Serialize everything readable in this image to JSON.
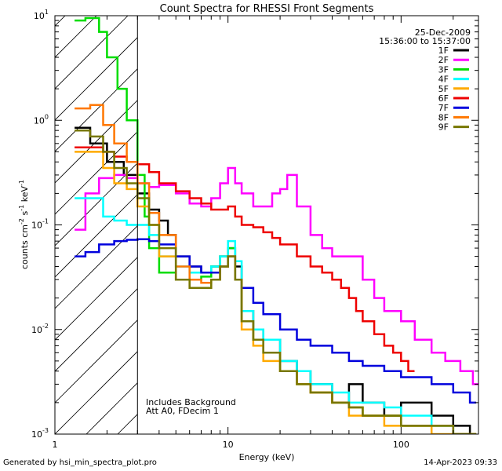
{
  "chart_data": {
    "type": "line",
    "title": "Count Spectra for RHESSI Front Segments",
    "xlabel": "Energy (keV)",
    "ylabel_parts": {
      "main": "counts cm",
      "exp1": "-2",
      "mid": " s",
      "exp2": "-1",
      "end": " keV",
      "exp3": "-1"
    },
    "xscale": "log",
    "yscale": "log",
    "xlim": [
      1,
      280
    ],
    "ylim": [
      0.001,
      10
    ],
    "x_ticks": [
      {
        "value": 1,
        "label": "1"
      },
      {
        "value": 10,
        "label": "10"
      },
      {
        "value": 100,
        "label": "100"
      }
    ],
    "y_ticks": [
      {
        "value": 10,
        "label": "10",
        "exp": "1"
      },
      {
        "value": 1,
        "label": "10",
        "exp": "0"
      },
      {
        "value": 0.1,
        "label": "10",
        "exp": "-1"
      },
      {
        "value": 0.01,
        "label": "10",
        "exp": "-2"
      },
      {
        "value": 0.001,
        "label": "10",
        "exp": "-3"
      }
    ],
    "legend_header": {
      "date": "25-Dec-2009",
      "time_range": "15:36:00 to 15:37:00"
    },
    "legend_placement": "top-right",
    "excluded_region_kev": [
      1,
      3
    ],
    "annotations": [
      "Includes Background",
      "Att A0, FDecim 1"
    ],
    "series": [
      {
        "name": "1F",
        "color": "#000000",
        "values": [
          [
            1.3,
            0.85
          ],
          [
            1.6,
            0.6
          ],
          [
            2.0,
            0.4
          ],
          [
            2.5,
            0.3
          ],
          [
            3.0,
            0.2
          ],
          [
            3.5,
            0.14
          ],
          [
            4.0,
            0.11
          ],
          [
            4.5,
            0.08
          ],
          [
            5.0,
            0.05
          ],
          [
            6.0,
            0.04
          ],
          [
            7.0,
            0.035
          ],
          [
            8.0,
            0.04
          ],
          [
            9.0,
            0.05
          ],
          [
            10.0,
            0.06
          ],
          [
            11.0,
            0.04
          ],
          [
            12.0,
            0.015
          ],
          [
            14.0,
            0.01
          ],
          [
            16.0,
            0.008
          ],
          [
            20.0,
            0.005
          ],
          [
            25.0,
            0.004
          ],
          [
            30.0,
            0.003
          ],
          [
            40.0,
            0.002
          ],
          [
            50.0,
            0.003
          ],
          [
            60.0,
            0.002
          ],
          [
            80.0,
            0.0015
          ],
          [
            100.0,
            0.002
          ],
          [
            150.0,
            0.0015
          ],
          [
            200.0,
            0.0012
          ],
          [
            250.0,
            0.001
          ]
        ]
      },
      {
        "name": "2F",
        "color": "#ff00ff",
        "values": [
          [
            1.3,
            0.09
          ],
          [
            1.5,
            0.2
          ],
          [
            1.8,
            0.28
          ],
          [
            2.2,
            0.3
          ],
          [
            2.6,
            0.28
          ],
          [
            3.0,
            0.25
          ],
          [
            3.5,
            0.23
          ],
          [
            4.0,
            0.24
          ],
          [
            5.0,
            0.2
          ],
          [
            6.0,
            0.16
          ],
          [
            7.0,
            0.15
          ],
          [
            8.0,
            0.18
          ],
          [
            9.0,
            0.25
          ],
          [
            10.0,
            0.35
          ],
          [
            11.0,
            0.25
          ],
          [
            12.0,
            0.2
          ],
          [
            14.0,
            0.15
          ],
          [
            16.0,
            0.15
          ],
          [
            18.0,
            0.2
          ],
          [
            20.0,
            0.22
          ],
          [
            22.0,
            0.3
          ],
          [
            25.0,
            0.15
          ],
          [
            30.0,
            0.08
          ],
          [
            35.0,
            0.06
          ],
          [
            40.0,
            0.05
          ],
          [
            50.0,
            0.05
          ],
          [
            60.0,
            0.03
          ],
          [
            70.0,
            0.02
          ],
          [
            80.0,
            0.015
          ],
          [
            100.0,
            0.012
          ],
          [
            120.0,
            0.008
          ],
          [
            150.0,
            0.006
          ],
          [
            180.0,
            0.005
          ],
          [
            220.0,
            0.004
          ],
          [
            260.0,
            0.003
          ]
        ]
      },
      {
        "name": "3F",
        "color": "#00dd00",
        "values": [
          [
            1.3,
            9.0
          ],
          [
            1.5,
            9.5
          ],
          [
            1.8,
            7.0
          ],
          [
            2.0,
            4.0
          ],
          [
            2.3,
            2.0
          ],
          [
            2.6,
            1.0
          ],
          [
            3.0,
            0.3
          ],
          [
            3.3,
            0.12
          ],
          [
            3.5,
            0.06
          ],
          [
            4.0,
            0.035
          ],
          [
            5.0,
            0.03
          ],
          [
            6.0,
            0.03
          ],
          [
            7.0,
            0.032
          ],
          [
            8.0,
            0.04
          ],
          [
            9.0,
            0.05
          ],
          [
            10.0,
            0.06
          ],
          [
            11.0,
            0.03
          ],
          [
            12.0,
            0.012
          ],
          [
            14.0,
            0.008
          ],
          [
            16.0,
            0.006
          ],
          [
            20.0,
            0.004
          ],
          [
            25.0,
            0.003
          ],
          [
            30.0,
            0.0025
          ],
          [
            40.0,
            0.002
          ],
          [
            50.0,
            0.0018
          ],
          [
            60.0,
            0.0015
          ],
          [
            80.0,
            0.0015
          ],
          [
            100.0,
            0.0012
          ],
          [
            150.0,
            0.0012
          ],
          [
            200.0,
            0.001
          ],
          [
            250.0,
            0.001
          ]
        ]
      },
      {
        "name": "4F",
        "color": "#00ffff",
        "values": [
          [
            1.3,
            0.18
          ],
          [
            1.6,
            0.18
          ],
          [
            1.9,
            0.12
          ],
          [
            2.2,
            0.11
          ],
          [
            2.6,
            0.1
          ],
          [
            3.0,
            0.1
          ],
          [
            3.5,
            0.08
          ],
          [
            4.0,
            0.05
          ],
          [
            5.0,
            0.04
          ],
          [
            6.0,
            0.035
          ],
          [
            7.0,
            0.035
          ],
          [
            8.0,
            0.04
          ],
          [
            9.0,
            0.05
          ],
          [
            10.0,
            0.07
          ],
          [
            11.0,
            0.045
          ],
          [
            12.0,
            0.015
          ],
          [
            14.0,
            0.01
          ],
          [
            16.0,
            0.008
          ],
          [
            20.0,
            0.005
          ],
          [
            25.0,
            0.004
          ],
          [
            30.0,
            0.003
          ],
          [
            40.0,
            0.0025
          ],
          [
            50.0,
            0.002
          ],
          [
            60.0,
            0.002
          ],
          [
            80.0,
            0.0018
          ],
          [
            100.0,
            0.0015
          ],
          [
            150.0,
            0.0012
          ],
          [
            200.0,
            0.001
          ],
          [
            250.0,
            0.001
          ]
        ]
      },
      {
        "name": "5F",
        "color": "#ffaa00",
        "values": [
          [
            1.3,
            0.5
          ],
          [
            1.6,
            0.5
          ],
          [
            1.9,
            0.35
          ],
          [
            2.2,
            0.25
          ],
          [
            2.6,
            0.22
          ],
          [
            3.0,
            0.15
          ],
          [
            3.5,
            0.1
          ],
          [
            4.0,
            0.05
          ],
          [
            5.0,
            0.03
          ],
          [
            6.0,
            0.025
          ],
          [
            7.0,
            0.025
          ],
          [
            8.0,
            0.03
          ],
          [
            9.0,
            0.04
          ],
          [
            10.0,
            0.05
          ],
          [
            11.0,
            0.03
          ],
          [
            12.0,
            0.01
          ],
          [
            14.0,
            0.007
          ],
          [
            16.0,
            0.005
          ],
          [
            20.0,
            0.004
          ],
          [
            25.0,
            0.003
          ],
          [
            30.0,
            0.0025
          ],
          [
            40.0,
            0.002
          ],
          [
            50.0,
            0.0015
          ],
          [
            60.0,
            0.0015
          ],
          [
            80.0,
            0.0012
          ],
          [
            100.0,
            0.0012
          ],
          [
            150.0,
            0.001
          ],
          [
            200.0,
            0.001
          ],
          [
            250.0,
            0.001
          ]
        ]
      },
      {
        "name": "6F",
        "color": "#ee0000",
        "values": [
          [
            1.3,
            0.55
          ],
          [
            1.6,
            0.55
          ],
          [
            1.9,
            0.5
          ],
          [
            2.2,
            0.45
          ],
          [
            2.6,
            0.4
          ],
          [
            3.0,
            0.38
          ],
          [
            3.5,
            0.32
          ],
          [
            4.0,
            0.25
          ],
          [
            5.0,
            0.21
          ],
          [
            6.0,
            0.18
          ],
          [
            7.0,
            0.16
          ],
          [
            8.0,
            0.14
          ],
          [
            9.0,
            0.14
          ],
          [
            10.0,
            0.15
          ],
          [
            11.0,
            0.12
          ],
          [
            12.0,
            0.1
          ],
          [
            14.0,
            0.095
          ],
          [
            16.0,
            0.085
          ],
          [
            18.0,
            0.075
          ],
          [
            20.0,
            0.065
          ],
          [
            25.0,
            0.05
          ],
          [
            30.0,
            0.04
          ],
          [
            35.0,
            0.035
          ],
          [
            40.0,
            0.03
          ],
          [
            45.0,
            0.025
          ],
          [
            50.0,
            0.02
          ],
          [
            55.0,
            0.015
          ],
          [
            60.0,
            0.012
          ],
          [
            70.0,
            0.009
          ],
          [
            80.0,
            0.007
          ],
          [
            90.0,
            0.006
          ],
          [
            100.0,
            0.005
          ],
          [
            110.0,
            0.004
          ]
        ]
      },
      {
        "name": "7F",
        "color": "#0000dd",
        "values": [
          [
            1.3,
            0.05
          ],
          [
            1.5,
            0.055
          ],
          [
            1.8,
            0.065
          ],
          [
            2.2,
            0.07
          ],
          [
            2.6,
            0.072
          ],
          [
            3.0,
            0.073
          ],
          [
            3.5,
            0.07
          ],
          [
            4.0,
            0.065
          ],
          [
            5.0,
            0.05
          ],
          [
            6.0,
            0.04
          ],
          [
            7.0,
            0.035
          ],
          [
            8.0,
            0.035
          ],
          [
            9.0,
            0.04
          ],
          [
            10.0,
            0.05
          ],
          [
            11.0,
            0.03
          ],
          [
            12.0,
            0.025
          ],
          [
            14.0,
            0.018
          ],
          [
            16.0,
            0.014
          ],
          [
            20.0,
            0.01
          ],
          [
            25.0,
            0.008
          ],
          [
            30.0,
            0.007
          ],
          [
            40.0,
            0.006
          ],
          [
            50.0,
            0.005
          ],
          [
            60.0,
            0.0045
          ],
          [
            80.0,
            0.004
          ],
          [
            100.0,
            0.0035
          ],
          [
            150.0,
            0.003
          ],
          [
            200.0,
            0.0025
          ],
          [
            250.0,
            0.002
          ]
        ]
      },
      {
        "name": "8F",
        "color": "#ff7700",
        "values": [
          [
            1.3,
            1.3
          ],
          [
            1.6,
            1.4
          ],
          [
            1.9,
            0.9
          ],
          [
            2.2,
            0.6
          ],
          [
            2.6,
            0.4
          ],
          [
            3.0,
            0.25
          ],
          [
            3.5,
            0.13
          ],
          [
            4.0,
            0.08
          ],
          [
            5.0,
            0.04
          ],
          [
            6.0,
            0.03
          ],
          [
            7.0,
            0.028
          ],
          [
            8.0,
            0.03
          ],
          [
            9.0,
            0.04
          ],
          [
            10.0,
            0.05
          ],
          [
            11.0,
            0.03
          ],
          [
            12.0,
            0.012
          ],
          [
            14.0,
            0.008
          ],
          [
            16.0,
            0.006
          ],
          [
            20.0,
            0.004
          ],
          [
            25.0,
            0.003
          ],
          [
            30.0,
            0.0025
          ],
          [
            40.0,
            0.002
          ],
          [
            50.0,
            0.0018
          ],
          [
            60.0,
            0.0015
          ],
          [
            80.0,
            0.0015
          ],
          [
            100.0,
            0.0012
          ],
          [
            150.0,
            0.0012
          ],
          [
            200.0,
            0.001
          ],
          [
            250.0,
            0.001
          ]
        ]
      },
      {
        "name": "9F",
        "color": "#777700",
        "values": [
          [
            1.3,
            0.8
          ],
          [
            1.6,
            0.7
          ],
          [
            1.9,
            0.5
          ],
          [
            2.2,
            0.35
          ],
          [
            2.6,
            0.25
          ],
          [
            3.0,
            0.18
          ],
          [
            3.5,
            0.1
          ],
          [
            4.0,
            0.06
          ],
          [
            5.0,
            0.03
          ],
          [
            6.0,
            0.025
          ],
          [
            7.0,
            0.025
          ],
          [
            8.0,
            0.03
          ],
          [
            9.0,
            0.04
          ],
          [
            10.0,
            0.05
          ],
          [
            11.0,
            0.03
          ],
          [
            12.0,
            0.012
          ],
          [
            14.0,
            0.008
          ],
          [
            16.0,
            0.006
          ],
          [
            20.0,
            0.004
          ],
          [
            25.0,
            0.003
          ],
          [
            30.0,
            0.0025
          ],
          [
            40.0,
            0.002
          ],
          [
            50.0,
            0.0018
          ],
          [
            60.0,
            0.0015
          ],
          [
            80.0,
            0.0015
          ],
          [
            100.0,
            0.0012
          ],
          [
            150.0,
            0.0012
          ],
          [
            200.0,
            0.001
          ],
          [
            250.0,
            0.001
          ]
        ]
      }
    ]
  },
  "footer": {
    "generated_by": "Generated by hsi_min_spectra_plot.pro",
    "timestamp": "14-Apr-2023 09:33"
  }
}
